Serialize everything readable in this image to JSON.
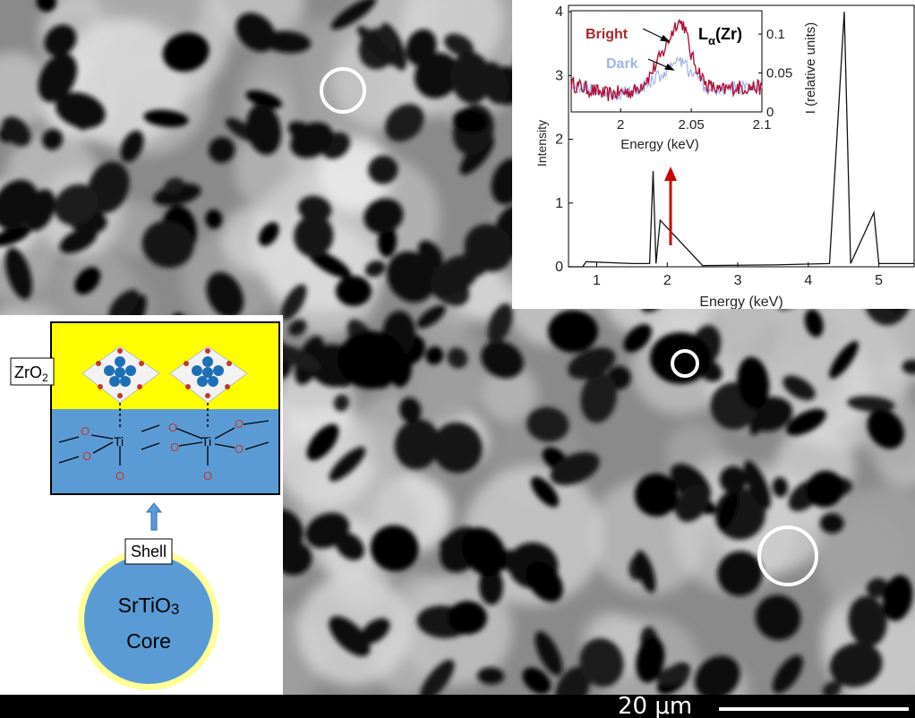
{
  "scale_bar": {
    "label": "20 μm"
  },
  "colors": {
    "bright_series": "#b0123a",
    "dark_series": "#9fb4ee",
    "arrow": "#d00000",
    "zro2_layer": "#ffff00",
    "srtio3_layer": "#5b9bd5",
    "shell_ring": "#ffff99",
    "highlight_circle": "#ffffff"
  },
  "inset_spectrum": {
    "ylabel": "Intensity",
    "xlabel": "Energy (keV)",
    "xticks": [
      "2",
      "2.05",
      "2.1"
    ],
    "yticks_left": [
      "0",
      "1",
      "2",
      "3",
      "4"
    ],
    "yticks_right": [
      "0",
      "0.05",
      "0.1"
    ],
    "peak_label_element": "L",
    "peak_label_sub": "α",
    "peak_label_species": "(Zr)",
    "legend": {
      "bright": "Bright",
      "dark": "Dark"
    }
  },
  "main_spectrum": {
    "xlabel": "Energy (keV)",
    "ylabel": "I (relative units)",
    "xticks": [
      "1",
      "2",
      "3",
      "4",
      "5"
    ]
  },
  "schematic": {
    "zro2_label": "ZrO",
    "zro2_sub": "2",
    "ti_label": "Ti",
    "o_label": "O",
    "shell_label": "Shell",
    "core_formula": "SrTiO",
    "core_formula_sub": "3",
    "core_label": "Core"
  },
  "chart_data": [
    {
      "type": "line",
      "title": "",
      "xlabel": "Energy (keV)",
      "ylabel": "I (relative units)",
      "xlim": [
        0.6,
        5.5
      ],
      "series": [
        {
          "x": [
            0.6,
            0.8,
            0.85,
            1.5,
            1.75,
            1.8,
            1.84,
            1.9,
            2.5,
            3.5,
            4.3,
            4.51,
            4.6,
            4.93,
            5.0,
            5.5
          ],
          "values": [
            0.0,
            0.0,
            0.08,
            0.05,
            0.05,
            1.5,
            0.05,
            0.73,
            0.02,
            0.03,
            0.05,
            4.0,
            0.05,
            0.85,
            0.05,
            0.05
          ]
        }
      ]
    },
    {
      "type": "line",
      "title": "",
      "xlabel": "Energy (keV)",
      "ylabel": "Intensity",
      "xlim": [
        1.965,
        2.1
      ],
      "ylim": [
        0,
        4
      ],
      "series": [
        {
          "name": "Bright",
          "x": [
            1.965,
            1.99,
            2.01,
            2.02,
            2.03,
            2.04,
            2.045,
            2.05,
            2.06,
            2.07,
            2.08,
            2.1
          ],
          "values": [
            3.0,
            2.85,
            2.9,
            3.1,
            3.45,
            3.9,
            3.85,
            3.4,
            3.0,
            2.9,
            2.95,
            2.95
          ]
        },
        {
          "name": "Dark",
          "x": [
            1.965,
            1.99,
            2.01,
            2.02,
            2.03,
            2.04,
            2.045,
            2.05,
            2.06,
            2.07,
            2.08,
            2.1
          ],
          "values": [
            3.0,
            2.85,
            2.9,
            3.0,
            3.15,
            3.3,
            3.3,
            3.15,
            2.95,
            2.9,
            2.95,
            2.95
          ]
        }
      ]
    }
  ]
}
